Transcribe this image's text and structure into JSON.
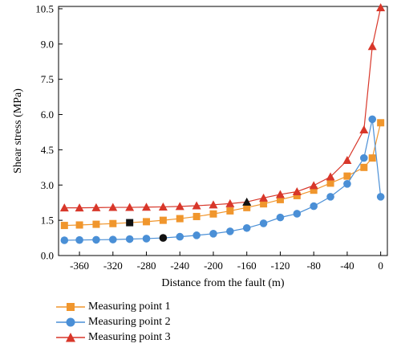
{
  "chart_data": {
    "type": "line",
    "xlabel": "Distance from the fault (m)",
    "ylabel": "Shear stress (MPa)",
    "xlim": [
      -385,
      8
    ],
    "ylim": [
      0,
      10.6
    ],
    "xticks": [
      -360,
      -320,
      -280,
      -240,
      -200,
      -160,
      -120,
      -80,
      -40,
      0
    ],
    "yticks": [
      0.0,
      1.5,
      3.0,
      4.5,
      6.0,
      7.5,
      9.0,
      10.5
    ],
    "ytick_labels": [
      "0.0",
      "1.5",
      "3.0",
      "4.5",
      "6.0",
      "7.5",
      "9.0",
      "10.5"
    ],
    "grid": false,
    "legend_position": "bottom-left, below plot",
    "series": [
      {
        "name": "Measuring point 1",
        "color": "#f0962d",
        "marker": "square",
        "x": [
          -378,
          -360,
          -340,
          -320,
          -300,
          -280,
          -260,
          -240,
          -220,
          -200,
          -180,
          -160,
          -140,
          -120,
          -100,
          -80,
          -60,
          -40,
          -20,
          -10,
          0
        ],
        "y": [
          1.28,
          1.3,
          1.33,
          1.36,
          1.4,
          1.44,
          1.5,
          1.57,
          1.66,
          1.77,
          1.9,
          2.04,
          2.2,
          2.38,
          2.55,
          2.78,
          3.08,
          3.38,
          3.75,
          4.15,
          5.65
        ],
        "highlight_index": 4
      },
      {
        "name": "Measuring point 2",
        "color": "#4a8fd6",
        "marker": "circle",
        "x": [
          -378,
          -360,
          -340,
          -320,
          -300,
          -280,
          -260,
          -240,
          -220,
          -200,
          -180,
          -160,
          -140,
          -120,
          -100,
          -80,
          -60,
          -40,
          -20,
          -10,
          0
        ],
        "y": [
          0.65,
          0.66,
          0.67,
          0.68,
          0.7,
          0.72,
          0.75,
          0.8,
          0.86,
          0.93,
          1.03,
          1.17,
          1.37,
          1.62,
          1.78,
          2.1,
          2.5,
          3.05,
          4.15,
          5.8,
          2.5
        ],
        "highlight_index": 6
      },
      {
        "name": "Measuring point 3",
        "color": "#d8372a",
        "marker": "triangle",
        "x": [
          -378,
          -360,
          -340,
          -320,
          -300,
          -280,
          -260,
          -240,
          -220,
          -200,
          -180,
          -160,
          -140,
          -120,
          -100,
          -80,
          -60,
          -40,
          -20,
          -10,
          0
        ],
        "y": [
          2.03,
          2.03,
          2.04,
          2.05,
          2.05,
          2.06,
          2.07,
          2.09,
          2.12,
          2.16,
          2.21,
          2.28,
          2.45,
          2.6,
          2.72,
          2.98,
          3.35,
          4.05,
          5.35,
          8.9,
          10.55
        ],
        "highlight_index": 11
      }
    ]
  }
}
